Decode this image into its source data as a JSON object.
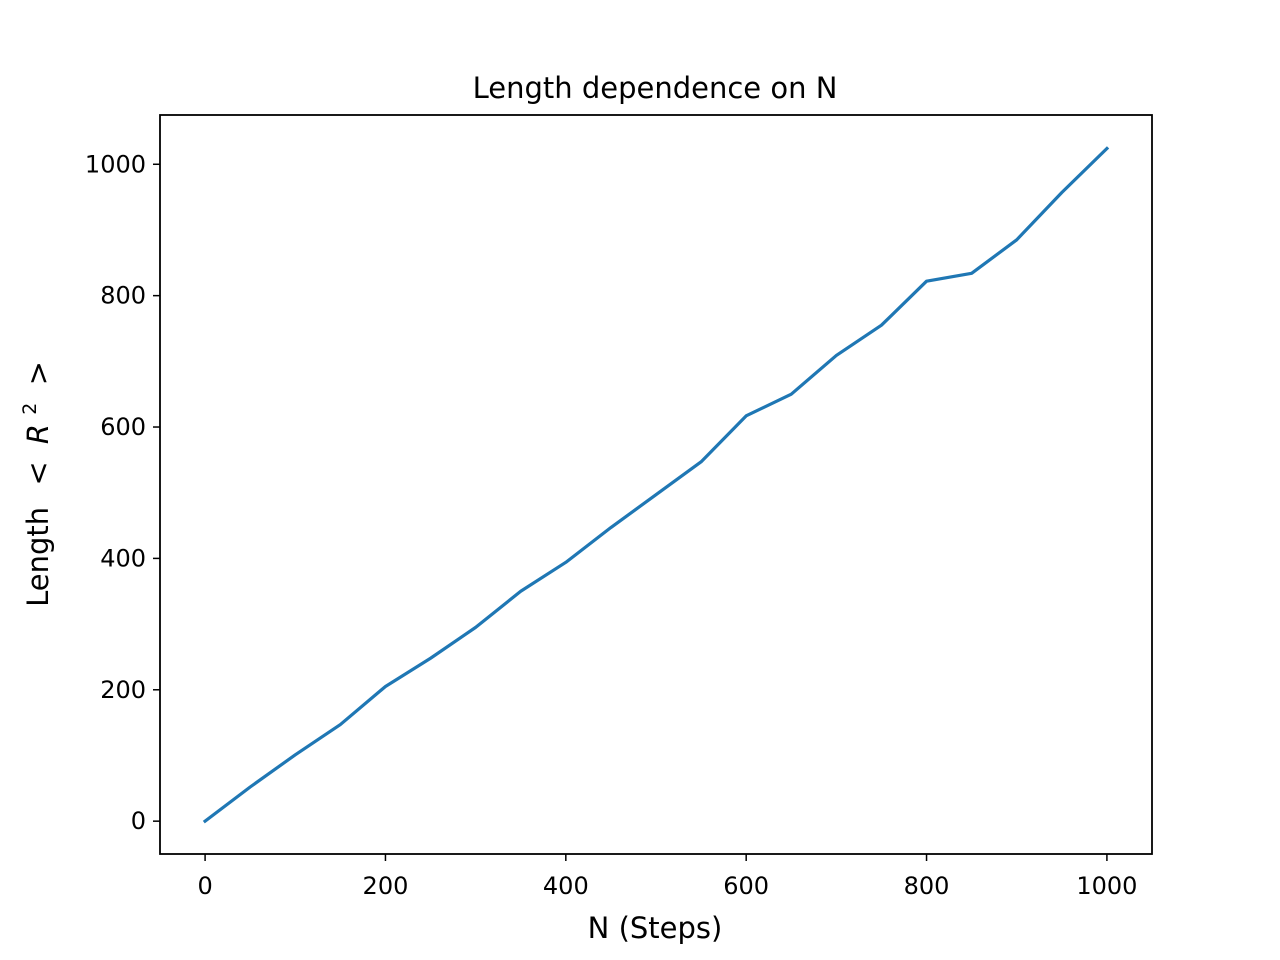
{
  "chart_data": {
    "type": "line",
    "title": "Length dependence on N",
    "xlabel": "N (Steps)",
    "ylabel_prefix": "Length",
    "ylabel_open": "<",
    "ylabel_symbol": "R",
    "ylabel_superscript": "2",
    "ylabel_close": ">",
    "xlim": [
      -50,
      1050
    ],
    "ylim": [
      -50,
      1075
    ],
    "x_ticks": [
      0,
      200,
      400,
      600,
      800,
      1000
    ],
    "y_ticks": [
      0,
      200,
      400,
      600,
      800,
      1000
    ],
    "x_tick_labels": [
      "0",
      "200",
      "400",
      "600",
      "800",
      "1000"
    ],
    "y_tick_labels": [
      "0",
      "200",
      "400",
      "600",
      "800",
      "1000"
    ],
    "grid": false,
    "color": "#1f77b4",
    "series": [
      {
        "x": [
          0,
          50,
          100,
          150,
          200,
          250,
          300,
          350,
          400,
          450,
          500,
          550,
          600,
          650,
          700,
          750,
          800,
          850,
          900,
          950,
          1000
        ],
        "y": [
          0,
          52,
          101,
          147,
          205,
          248,
          295,
          350,
          394,
          447,
          497,
          547,
          617,
          650,
          709,
          755,
          822,
          834,
          885,
          957,
          1024
        ]
      }
    ]
  }
}
